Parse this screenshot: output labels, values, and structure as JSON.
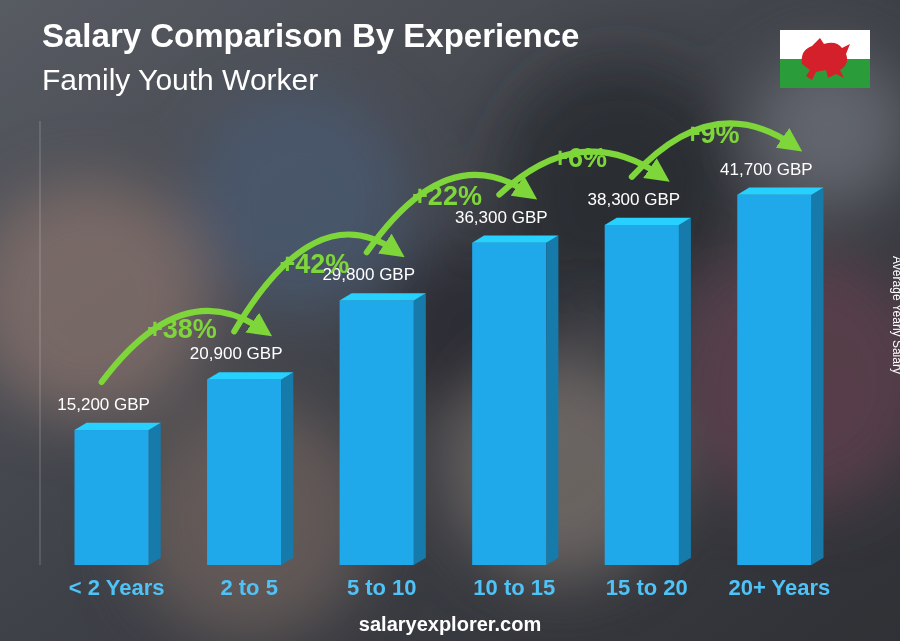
{
  "chart_data": {
    "type": "bar",
    "title": "Salary Comparison By Experience",
    "subtitle": "Family Youth Worker",
    "y_label": "Average Yearly Salary",
    "source": "salaryexplorer.com",
    "categories": [
      "< 2 Years",
      "2 to 5",
      "5 to 10",
      "10 to 15",
      "15 to 20",
      "20+ Years"
    ],
    "values": [
      15200,
      20900,
      29800,
      36300,
      38300,
      41700
    ],
    "value_labels": [
      "15,200 GBP",
      "20,900 GBP",
      "29,800 GBP",
      "36,300 GBP",
      "38,300 GBP",
      "41,700 GBP"
    ],
    "annotations": [
      "+38%",
      "+42%",
      "+22%",
      "+6%",
      "+9%"
    ],
    "color": "#1fa8ea",
    "ylim": [
      0,
      50000
    ],
    "data_labels": true,
    "tick_labels": "x"
  }
}
